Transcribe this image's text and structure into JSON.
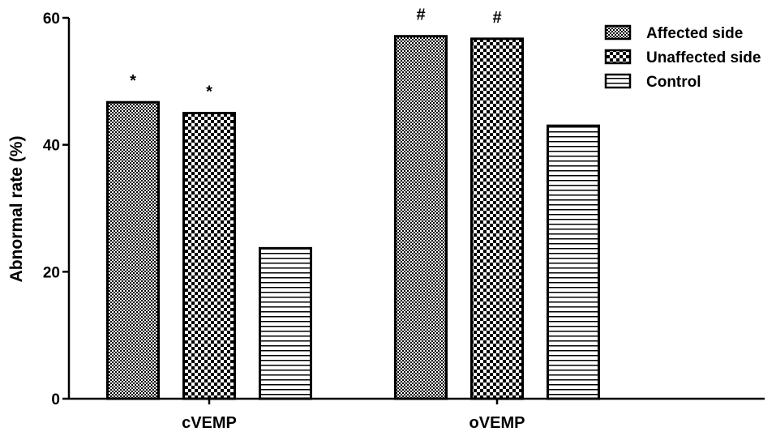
{
  "chart_data": {
    "type": "bar",
    "title": "",
    "xlabel": "",
    "ylabel": "Abnormal rate (%)",
    "ylim": [
      0,
      60
    ],
    "yticks": [
      0,
      20,
      40,
      60
    ],
    "grid": false,
    "legend_position": "top-right",
    "categories": [
      "cVEMP",
      "oVEMP"
    ],
    "series": [
      {
        "name": "Affected side",
        "values": [
          46.7,
          57.1
        ],
        "pattern": "fine-checker",
        "annotations": [
          "*",
          "#"
        ]
      },
      {
        "name": "Unaffected side",
        "values": [
          45.0,
          56.7
        ],
        "pattern": "coarse-checker",
        "annotations": [
          "*",
          "#"
        ]
      },
      {
        "name": "Control",
        "values": [
          23.7,
          43.0
        ],
        "pattern": "horizontal-lines",
        "annotations": [
          "",
          ""
        ]
      }
    ],
    "colors": {
      "bar_stroke": "#000000",
      "pattern_ink": "#000000",
      "background": "#ffffff"
    }
  }
}
